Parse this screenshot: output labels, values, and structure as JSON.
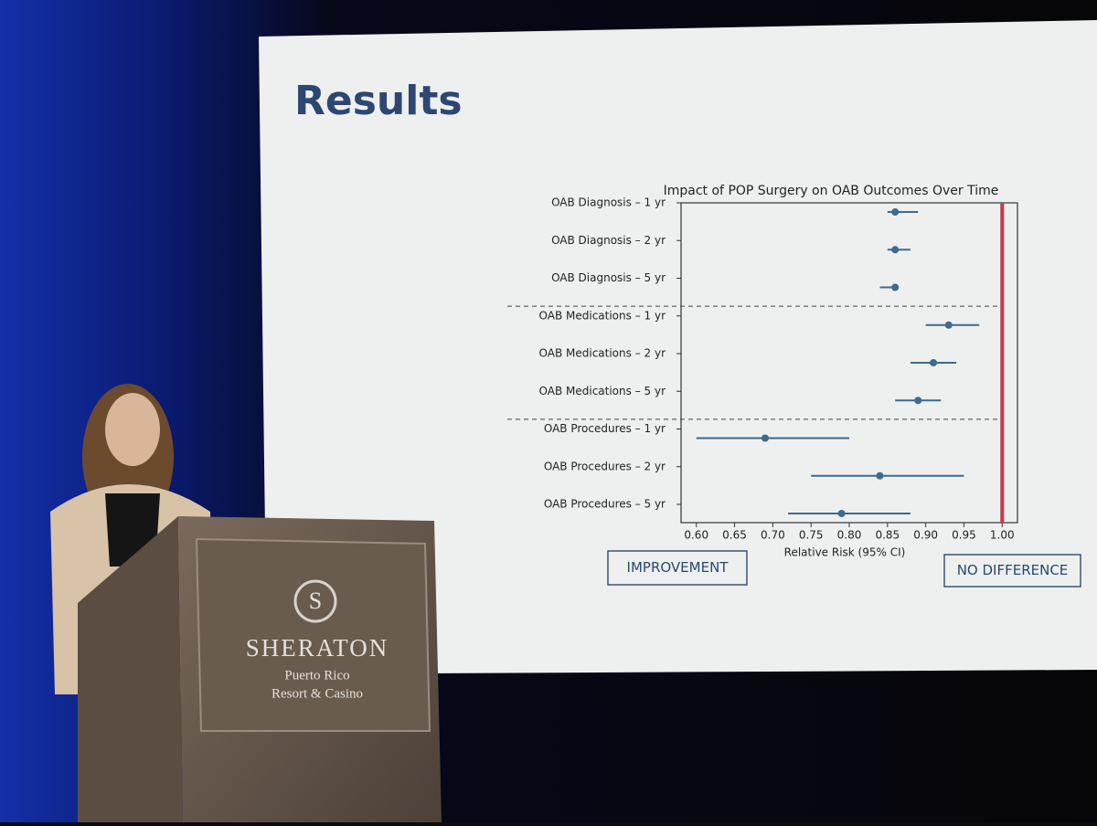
{
  "slide": {
    "title": "Results"
  },
  "chart_data": {
    "type": "forest",
    "title": "Impact of POP Surgery on OAB Outcomes Over Time",
    "x_label": "Relative Risk (95% CI)",
    "categories": [
      "OAB Diagnosis – 1 yr",
      "OAB Diagnosis – 2 yr",
      "OAB Diagnosis – 5 yr",
      "OAB Medications – 1 yr",
      "OAB Medications – 2 yr",
      "OAB Medications – 5 yr",
      "OAB Procedures – 1 yr",
      "OAB Procedures – 2 yr",
      "OAB Procedures – 5 yr"
    ],
    "values": [
      0.86,
      0.86,
      0.86,
      0.93,
      0.91,
      0.89,
      0.69,
      0.84,
      0.79
    ],
    "lower": [
      0.85,
      0.85,
      0.84,
      0.9,
      0.88,
      0.86,
      0.6,
      0.75,
      0.72
    ],
    "upper": [
      0.89,
      0.88,
      0.86,
      0.97,
      0.94,
      0.92,
      0.8,
      0.95,
      0.88
    ],
    "color": "#3d6a8e",
    "ref_line": 1,
    "ref_color": "#c8374a",
    "xlim": [
      0.58,
      1.02
    ],
    "xticks": [
      {
        "value": 0.6,
        "label": "0.60"
      },
      0.65,
      {
        "value": 0.7,
        "label": "0.70"
      },
      0.75,
      {
        "value": 0.8,
        "label": "0.80"
      },
      0.85,
      {
        "value": 0.9,
        "label": "0.90"
      },
      0.95,
      {
        "value": 1,
        "label": "1.00"
      }
    ],
    "annotations": [
      "IMPROVEMENT",
      "NO DIFFERENCE"
    ],
    "grid": false
  },
  "podium": {
    "logo": "S",
    "brand": "SHERATON",
    "lines": [
      "Puerto Rico",
      "Resort & Casino"
    ]
  }
}
